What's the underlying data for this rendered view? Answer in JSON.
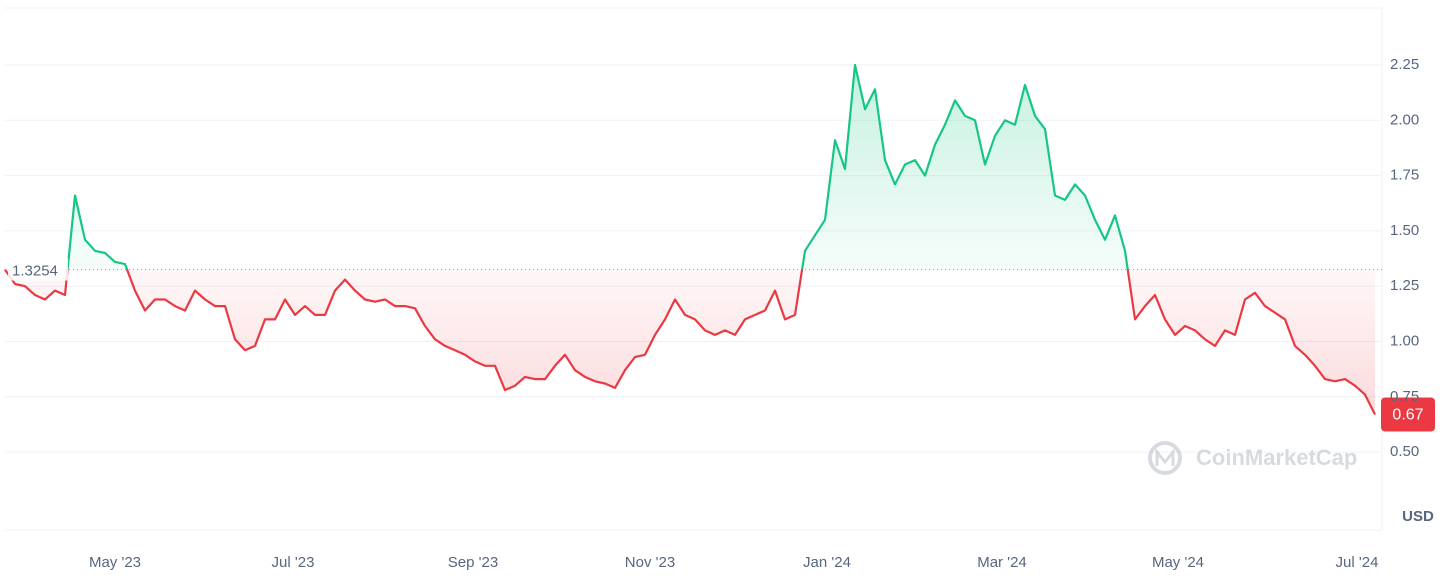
{
  "chart_data": {
    "type": "line",
    "y_unit": "USD",
    "watermark": "CoinMarketCap",
    "reference_value": 1.3254,
    "up_color": "#16c784",
    "down_color": "#ea3943",
    "grid": true,
    "xlim": [
      0,
      137.5
    ],
    "xticks": [
      {
        "value": 11,
        "label": "May '23"
      },
      {
        "value": 28.8,
        "label": "Jul '23"
      },
      {
        "value": 46.8,
        "label": "Sep '23"
      },
      {
        "value": 64.5,
        "label": "Nov '23"
      },
      {
        "value": 82.2,
        "label": "Jan '24"
      },
      {
        "value": 99.7,
        "label": "Mar '24"
      },
      {
        "value": 117.3,
        "label": "May '24"
      },
      {
        "value": 135.2,
        "label": "Jul '24"
      }
    ],
    "ylim": [
      0.15,
      2.5
    ],
    "yticks": [
      {
        "value": 0.5,
        "label": "0.50"
      },
      0.75,
      {
        "value": 1,
        "label": "1.00"
      },
      1.25,
      {
        "value": 1.5,
        "label": "1.50"
      },
      1.75,
      {
        "value": 2,
        "label": "2.00"
      },
      2.25
    ],
    "values": [
      1.325,
      1.26,
      1.25,
      1.21,
      1.19,
      1.23,
      1.21,
      1.66,
      1.46,
      1.41,
      1.4,
      1.36,
      1.35,
      1.23,
      1.14,
      1.19,
      1.19,
      1.16,
      1.14,
      1.23,
      1.19,
      1.16,
      1.16,
      1.01,
      0.96,
      0.98,
      1.1,
      1.1,
      1.19,
      1.12,
      1.16,
      1.12,
      1.12,
      1.23,
      1.28,
      1.23,
      1.19,
      1.18,
      1.19,
      1.16,
      1.16,
      1.15,
      1.07,
      1.01,
      0.98,
      0.96,
      0.94,
      0.91,
      0.89,
      0.89,
      0.78,
      0.8,
      0.84,
      0.83,
      0.83,
      0.89,
      0.94,
      0.87,
      0.84,
      0.82,
      0.81,
      0.79,
      0.87,
      0.93,
      0.94,
      1.03,
      1.1,
      1.19,
      1.12,
      1.1,
      1.05,
      1.03,
      1.05,
      1.03,
      1.1,
      1.12,
      1.14,
      1.23,
      1.1,
      1.12,
      1.41,
      1.48,
      1.55,
      1.91,
      1.78,
      2.25,
      2.05,
      2.14,
      1.82,
      1.71,
      1.8,
      1.82,
      1.75,
      1.89,
      1.98,
      2.09,
      2.02,
      2.0,
      1.8,
      1.93,
      2.0,
      1.98,
      2.16,
      2.02,
      1.96,
      1.66,
      1.64,
      1.71,
      1.66,
      1.55,
      1.46,
      1.57,
      1.41,
      1.1,
      1.16,
      1.21,
      1.1,
      1.03,
      1.07,
      1.05,
      1.01,
      0.98,
      1.05,
      1.03,
      1.19,
      1.22,
      1.16,
      1.13,
      1.1,
      0.98,
      0.94,
      0.89,
      0.83,
      0.82,
      0.83,
      0.8,
      0.76,
      0.67
    ]
  }
}
